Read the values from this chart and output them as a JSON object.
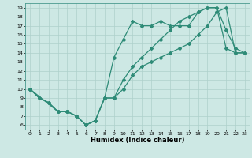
{
  "line1_x": [
    0,
    1,
    2,
    3,
    4,
    5,
    6,
    7,
    8,
    9,
    10,
    11,
    12,
    13,
    14,
    15,
    16,
    17,
    18,
    19,
    20,
    21,
    22,
    23
  ],
  "line1_y": [
    10,
    9,
    8.5,
    7.5,
    7.5,
    7.0,
    6.0,
    6.5,
    9.0,
    9.0,
    10.0,
    11.5,
    12.5,
    13.0,
    13.5,
    14.0,
    14.5,
    15.0,
    16.0,
    17.0,
    18.5,
    19.0,
    14.0,
    14.0
  ],
  "line2_x": [
    0,
    3,
    4,
    5,
    6,
    7,
    8,
    9,
    10,
    11,
    12,
    13,
    14,
    15,
    16,
    17,
    18,
    19,
    20,
    21,
    22,
    23
  ],
  "line2_y": [
    10,
    7.5,
    7.5,
    7.0,
    6.0,
    6.5,
    9.0,
    13.5,
    15.5,
    17.5,
    17.0,
    17.0,
    17.5,
    17.0,
    17.0,
    17.0,
    18.5,
    19.0,
    19.0,
    16.5,
    14.5,
    14.0
  ],
  "line3_x": [
    0,
    1,
    2,
    3,
    4,
    5,
    6,
    7,
    8,
    9,
    10,
    11,
    12,
    13,
    14,
    15,
    16,
    17,
    18,
    19,
    20,
    21,
    22,
    23
  ],
  "line3_y": [
    10,
    9,
    8.5,
    7.5,
    7.5,
    7.0,
    6.0,
    6.5,
    9.0,
    9.0,
    11.0,
    12.5,
    13.5,
    14.5,
    15.5,
    16.5,
    17.5,
    18.0,
    18.5,
    19.0,
    19.0,
    14.5,
    14.0,
    14.0
  ],
  "color": "#2e8b77",
  "bg_color": "#cde8e4",
  "grid_color": "#aed0cb",
  "xlabel": "Humidex (Indice chaleur)",
  "xlim": [
    -0.5,
    23.5
  ],
  "ylim": [
    5.5,
    19.5
  ],
  "xticks": [
    0,
    1,
    2,
    3,
    4,
    5,
    6,
    7,
    8,
    9,
    10,
    11,
    12,
    13,
    14,
    15,
    16,
    17,
    18,
    19,
    20,
    21,
    22,
    23
  ],
  "yticks": [
    6,
    7,
    8,
    9,
    10,
    11,
    12,
    13,
    14,
    15,
    16,
    17,
    18,
    19
  ],
  "marker": "D",
  "markersize": 2.0,
  "linewidth": 0.9,
  "tick_fontsize": 4.5,
  "xlabel_fontsize": 6.0
}
